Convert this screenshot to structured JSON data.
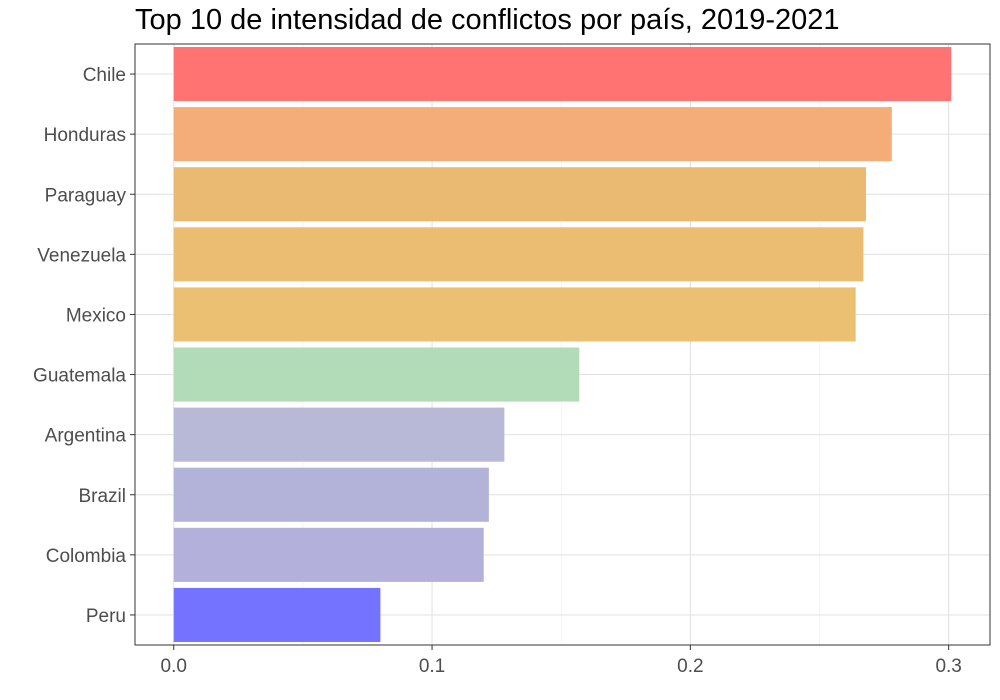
{
  "chart_data": {
    "type": "bar",
    "orientation": "horizontal",
    "title": "Top 10 de intensidad de conflictos por país, 2019-2021",
    "xlabel": "",
    "ylabel": "",
    "categories": [
      "Chile",
      "Honduras",
      "Paraguay",
      "Venezuela",
      "Mexico",
      "Guatemala",
      "Argentina",
      "Brazil",
      "Colombia",
      "Peru"
    ],
    "values": [
      0.301,
      0.278,
      0.268,
      0.267,
      0.264,
      0.157,
      0.128,
      0.122,
      0.12,
      0.08
    ],
    "colors": [
      "#ff7373",
      "#f4ac78",
      "#ebba72",
      "#ebbd72",
      "#ebc073",
      "#b2dcb7",
      "#b7b9d6",
      "#b3b3d9",
      "#b3b1db",
      "#7373ff"
    ],
    "xlim": [
      -0.015,
      0.316
    ],
    "xticks": [
      0.0,
      0.1,
      0.2,
      0.3
    ],
    "xtick_labels": [
      "0.0",
      "0.1",
      "0.2",
      "0.3"
    ],
    "grid": true,
    "legend": "none"
  }
}
